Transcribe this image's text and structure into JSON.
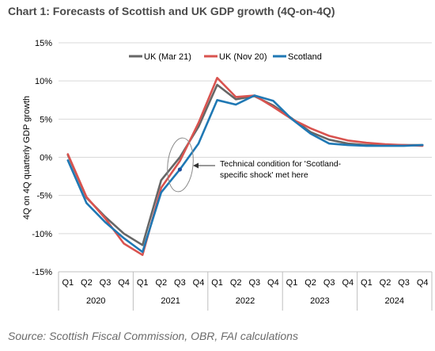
{
  "chart_data": {
    "type": "line",
    "title": "Chart 1: Forecasts of Scottish and UK GDP growth (4Q-on-4Q)",
    "ylabel": "4Q on 4Q quarterly GDP growth",
    "ylim": [
      -15,
      15
    ],
    "yticks": [
      "15%",
      "10%",
      "5%",
      "0%",
      "-5%",
      "-10%",
      "-15%"
    ],
    "ytick_values": [
      15,
      10,
      5,
      0,
      -5,
      -10,
      -15
    ],
    "quarters": [
      "Q1",
      "Q2",
      "Q3",
      "Q4",
      "Q1",
      "Q2",
      "Q3",
      "Q4",
      "Q1",
      "Q2",
      "Q3",
      "Q4",
      "Q1",
      "Q2",
      "Q3",
      "Q4",
      "Q1",
      "Q2",
      "Q3",
      "Q4"
    ],
    "years": [
      "2020",
      "2021",
      "2022",
      "2023",
      "2024"
    ],
    "legend_position": "top",
    "series": [
      {
        "name": "UK (Mar 21)",
        "color": "#666666",
        "values": [
          0.3,
          -5.3,
          -7.8,
          -10.0,
          -11.5,
          -3.0,
          0.0,
          4.0,
          9.5,
          7.6,
          8.0,
          6.8,
          5.1,
          3.3,
          2.3,
          1.8,
          1.6,
          1.6,
          1.6,
          1.6
        ]
      },
      {
        "name": "UK (Nov 20)",
        "color": "#d9534f",
        "values": [
          0.4,
          -5.2,
          -8.0,
          -11.3,
          -12.8,
          -4.0,
          -0.5,
          4.5,
          10.4,
          7.9,
          8.1,
          6.6,
          5.0,
          3.8,
          2.8,
          2.2,
          1.9,
          1.7,
          1.6,
          1.5
        ]
      },
      {
        "name": "Scotland",
        "color": "#1f78b4",
        "values": [
          -0.4,
          -6.0,
          -8.5,
          -10.6,
          -12.4,
          -4.6,
          -1.6,
          1.8,
          7.5,
          6.9,
          8.1,
          7.4,
          5.0,
          3.1,
          1.8,
          1.6,
          1.5,
          1.5,
          1.5,
          1.6
        ]
      }
    ],
    "annotation": "Technical condition for 'Scotland-specific shock' met here",
    "annotation_lines": [
      "Technical condition for 'Scotland-",
      "specific shock' met here"
    ],
    "highlight_point": {
      "series": "Scotland",
      "quarter": "Q3",
      "year": "2021",
      "value": -1.6
    }
  },
  "source": "Source: Scottish Fiscal Commission, OBR, FAI calculations",
  "colors": {
    "grid": "#d9d9d9",
    "axis": "#bfbfbf",
    "title": "#4a4a4a"
  }
}
